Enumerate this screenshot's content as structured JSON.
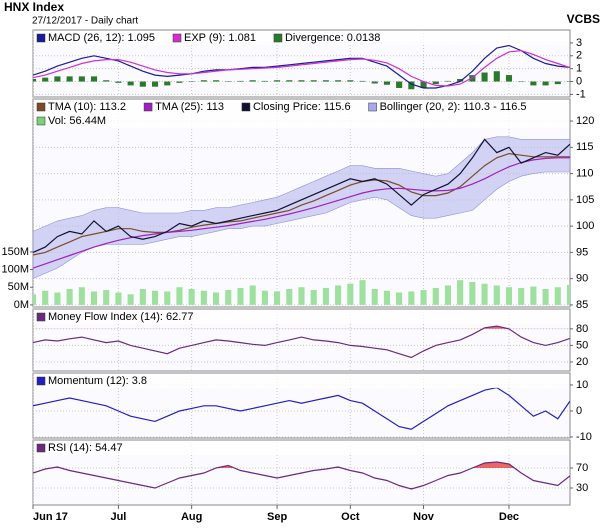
{
  "header": {
    "title": "HNX Index",
    "subtitle": "27/12/2017 - Daily chart",
    "source": "VCBS"
  },
  "chart_data": [
    {
      "type": "line",
      "ylim": [
        -1.2,
        4.0
      ],
      "yticks": [
        -1,
        0,
        1,
        2,
        3
      ],
      "grid": true,
      "series": [
        {
          "name": "MACD (26, 12): 1.095",
          "color": "#1a1a9a",
          "kind": "line",
          "values": [
            0.5,
            0.8,
            1.2,
            1.5,
            1.8,
            2,
            1.8,
            1.6,
            1.2,
            0.8,
            0.5,
            0.4,
            0.5,
            0.6,
            0.8,
            0.9,
            0.9,
            1,
            1.1,
            1.1,
            1.2,
            1.3,
            1.4,
            1.5,
            1.6,
            1.7,
            1.8,
            1.8,
            1.5,
            1.2,
            0.5,
            -0.2,
            -0.5,
            -0.5,
            -0.3,
            0,
            0.8,
            1.8,
            2.6,
            2.8,
            2.4,
            1.8,
            1.4,
            1.2,
            1.095
          ]
        },
        {
          "name": "EXP (9): 1.081",
          "color": "#d030d0",
          "kind": "line",
          "values": [
            0.3,
            0.5,
            0.8,
            1.1,
            1.4,
            1.6,
            1.7,
            1.7,
            1.5,
            1.2,
            0.9,
            0.7,
            0.6,
            0.6,
            0.7,
            0.8,
            0.9,
            0.95,
            1,
            1.05,
            1.1,
            1.2,
            1.3,
            1.4,
            1.5,
            1.6,
            1.7,
            1.75,
            1.65,
            1.45,
            1,
            0.4,
            0,
            -0.3,
            -0.35,
            -0.2,
            0.3,
            1.1,
            1.8,
            2.3,
            2.4,
            2.1,
            1.7,
            1.4,
            1.081
          ]
        },
        {
          "name": "Divergence: 0.0138",
          "color": "#2a7a2a",
          "kind": "bar",
          "values": [
            0.2,
            0.3,
            0.4,
            0.4,
            0.4,
            0.4,
            0.1,
            -0.1,
            -0.3,
            -0.4,
            -0.4,
            -0.3,
            -0.1,
            0,
            0.1,
            0.1,
            0,
            0.05,
            0.1,
            0.05,
            0.1,
            0.1,
            0.1,
            0.1,
            0.1,
            0.1,
            0.1,
            0.05,
            -0.15,
            -0.25,
            -0.5,
            -0.6,
            -0.5,
            -0.2,
            0.05,
            0.2,
            0.5,
            0.7,
            0.8,
            0.5,
            0,
            -0.3,
            -0.3,
            -0.2,
            0.0138
          ]
        }
      ]
    },
    {
      "type": "line",
      "ylim": [
        84.6,
        124.2
      ],
      "yticks": [
        85,
        90,
        95,
        100,
        105,
        110,
        115,
        120
      ],
      "grid": true,
      "y2lim": [
        -6,
        583
      ],
      "y2ticks": [
        {
          "value": 0,
          "label": "0M"
        },
        {
          "value": 50,
          "label": "50M"
        },
        {
          "value": 100,
          "label": "100M"
        },
        {
          "value": 150,
          "label": "150M"
        }
      ],
      "series": [
        {
          "name": "TMA (10): 113.2",
          "color": "#7b4a2a",
          "kind": "line",
          "values": [
            94.5,
            95,
            96,
            97,
            98,
            98.5,
            99,
            99.5,
            99.5,
            99,
            98.8,
            98.8,
            99.2,
            99.8,
            100.2,
            100.5,
            100.8,
            101,
            101.5,
            102,
            102.5,
            103,
            104,
            104.8,
            105.8,
            106.8,
            107.8,
            108.5,
            108.8,
            108.6,
            107.8,
            106.5,
            105.8,
            105.8,
            106.3,
            107.5,
            109.5,
            111.5,
            113,
            113.8,
            113.5,
            113.2,
            113.2,
            113.2,
            113.2
          ]
        },
        {
          "name": "TMA (25): 113",
          "color": "#a020c0",
          "kind": "line",
          "values": [
            92,
            92.8,
            93.6,
            94.4,
            95.2,
            96,
            96.7,
            97.3,
            97.8,
            98.2,
            98.5,
            98.8,
            99,
            99.2,
            99.5,
            99.8,
            100.1,
            100.5,
            100.9,
            101.3,
            101.8,
            102.3,
            102.9,
            103.5,
            104.2,
            104.9,
            105.6,
            106.3,
            106.8,
            107.1,
            107.2,
            107,
            106.8,
            106.7,
            106.8,
            107.2,
            108,
            109,
            110.2,
            111.3,
            112.1,
            112.6,
            112.9,
            113,
            113
          ]
        },
        {
          "name": "Closing Price: 115.6",
          "color": "#101030",
          "kind": "line",
          "values": [
            95,
            96,
            98,
            99,
            98.5,
            101,
            99,
            100,
            98,
            97.5,
            98,
            99,
            100.5,
            100,
            101,
            100.5,
            101,
            101.5,
            102,
            102.5,
            103,
            104,
            105,
            106,
            107,
            108,
            109,
            108.5,
            109,
            108,
            106,
            104,
            106,
            107,
            108,
            110,
            113,
            116.5,
            114,
            115,
            112,
            113,
            114,
            113.5,
            115.6
          ]
        },
        {
          "name": "Bollinger (20, 2): 110.3 - 116.5",
          "color": "#b8b8ee",
          "kind": "band",
          "upper": [
            99,
            100,
            101,
            101.5,
            102,
            103,
            103.5,
            103.5,
            103,
            102.5,
            102.5,
            102.5,
            102.5,
            103,
            103,
            103.5,
            103.5,
            104,
            104.5,
            105,
            105.5,
            106.5,
            107.5,
            108.5,
            109.5,
            110.5,
            111.5,
            111.5,
            111,
            111,
            111,
            110.5,
            110,
            109.5,
            110,
            112,
            114,
            116.5,
            117,
            117,
            116.5,
            116.5,
            116.5,
            116.5,
            116.5
          ],
          "lower": [
            90,
            91,
            92,
            93.5,
            95,
            96,
            96.5,
            96.5,
            96.5,
            96.5,
            97,
            97.5,
            98,
            98,
            98.5,
            99,
            99.5,
            99.5,
            100,
            100,
            100.5,
            101,
            101.5,
            102,
            102.5,
            103.5,
            104.5,
            105,
            105.5,
            105,
            103.5,
            102,
            101.5,
            101.5,
            102,
            102.5,
            103,
            105,
            107,
            108.5,
            109.5,
            110,
            110.3,
            110.3,
            110.3
          ]
        },
        {
          "name": "Vol: 56.44M",
          "color": "#9ee09e",
          "kind": "bar",
          "axis": "y2",
          "values": [
            30,
            40,
            35,
            45,
            50,
            38,
            42,
            35,
            30,
            45,
            40,
            38,
            50,
            45,
            40,
            35,
            42,
            48,
            55,
            40,
            38,
            45,
            50,
            42,
            48,
            55,
            60,
            70,
            45,
            40,
            35,
            38,
            42,
            48,
            55,
            70,
            65,
            60,
            55,
            50,
            48,
            52,
            45,
            50,
            56.44
          ]
        }
      ]
    },
    {
      "type": "line",
      "ylim": [
        3.6,
        116
      ],
      "yticks": [
        20,
        50,
        80
      ],
      "grid": true,
      "threshold_fill": true,
      "series": [
        {
          "name": "Money Flow Index (14): 62.77",
          "color": "#6a2a80",
          "kind": "line",
          "values": [
            55,
            60,
            58,
            62,
            65,
            60,
            55,
            58,
            50,
            45,
            40,
            35,
            45,
            50,
            55,
            60,
            58,
            55,
            52,
            50,
            55,
            60,
            65,
            60,
            58,
            55,
            50,
            48,
            45,
            42,
            35,
            28,
            40,
            50,
            55,
            60,
            70,
            82,
            85,
            80,
            65,
            55,
            50,
            55,
            62.77
          ]
        }
      ]
    },
    {
      "type": "line",
      "ylim": [
        -10.4,
        14.6
      ],
      "yticks": [
        -10,
        0,
        10
      ],
      "grid": true,
      "series": [
        {
          "name": "Momentum (12): 3.8",
          "color": "#2020c0",
          "kind": "line",
          "values": [
            2,
            3,
            4,
            5,
            4,
            3,
            2,
            0,
            -2,
            -3,
            -4,
            -2,
            0,
            1,
            2,
            2,
            1,
            0,
            1,
            2,
            3,
            4,
            3,
            4,
            5,
            6,
            4,
            3,
            0,
            -3,
            -6,
            -7,
            -4,
            -1,
            2,
            4,
            6,
            8,
            9,
            6,
            2,
            -2,
            0,
            -3,
            3.8
          ]
        }
      ]
    },
    {
      "type": "line",
      "ylim": [
        -4,
        126
      ],
      "yticks": [
        30,
        70
      ],
      "grid": true,
      "threshold_fill": true,
      "categories": [
        "Jun 17",
        null,
        null,
        null,
        null,
        null,
        null,
        "Jul",
        null,
        null,
        null,
        null,
        null,
        "Aug",
        null,
        null,
        null,
        null,
        null,
        null,
        "Sep",
        null,
        null,
        null,
        null,
        null,
        "Oct",
        null,
        null,
        null,
        null,
        null,
        "Nov",
        null,
        null,
        null,
        null,
        null,
        null,
        "Dec",
        null,
        null,
        null,
        null,
        null
      ],
      "series": [
        {
          "name": "RSI (14): 54.47",
          "color": "#6a2a80",
          "kind": "line",
          "values": [
            60,
            68,
            72,
            65,
            60,
            55,
            50,
            45,
            40,
            35,
            30,
            40,
            50,
            55,
            60,
            70,
            75,
            65,
            60,
            55,
            50,
            55,
            60,
            65,
            68,
            72,
            65,
            60,
            50,
            45,
            35,
            28,
            35,
            45,
            55,
            60,
            70,
            80,
            82,
            78,
            60,
            45,
            40,
            35,
            54.47
          ]
        }
      ]
    }
  ]
}
